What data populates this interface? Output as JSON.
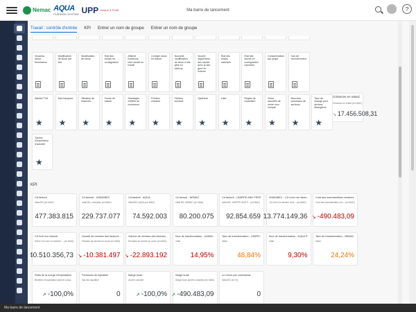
{
  "header": {
    "title": "Ma barre de lancement",
    "logo_nemac": "Nemac",
    "logo_aqua": "AQUA",
    "logo_aqua_sub": "PURIFIED SYSTEM",
    "logo_upp": "UPP",
    "logo_upp_sub": "Unique & Profit",
    "help_label": "?"
  },
  "tabs": [
    {
      "label": "Travail : contrôle d'entrée"
    },
    {
      "label": "KPI"
    },
    {
      "label": "Entrer un nom de groupe"
    },
    {
      "label": "Entrer un nom de groupe"
    }
  ],
  "tiles_row1": [
    {
      "title": "Nouveau retour fournisseur"
    },
    {
      "title": "Modification de stock par lots"
    },
    {
      "title": "Modification de stock"
    },
    {
      "title": "État des stocks en consignation"
    },
    {
      "title": "Afficher livraisons, mini stocké en transit"
    },
    {
      "title": "Corriger stock en transit"
    },
    {
      "title": "Nouvelle modification de stock à site géré en externe"
    },
    {
      "title": "Nouvel alignement des stocks avec le site géré en externe"
    },
    {
      "title": "État des stocks valorisés"
    },
    {
      "title": "État des stocks en consignation valorisée"
    },
    {
      "title": "Consommation par projet"
    },
    {
      "title": "Cas de recouvrement"
    }
  ],
  "tiles_row2": [
    {
      "title": "Saisies TVA"
    },
    {
      "title": "Mes banques"
    },
    {
      "title": "Situation de relances"
    },
    {
      "title": "Fonds de caisse"
    },
    {
      "title": "Stockages d'effets de commerce"
    },
    {
      "title": "Fichiers entrants"
    },
    {
      "title": "Fichiers sortants"
    },
    {
      "title": "Synthèse"
    },
    {
      "title": "Liste"
    },
    {
      "title": "Règles de répartition"
    },
    {
      "title": "Gérer données de vente mon compte"
    },
    {
      "title": "Nouveau processus de services"
    },
    {
      "title": "Taux de change pour devises étrangères"
    }
  ],
  "tile_creances": {
    "title": "Créances en retard",
    "subtitle": "Créances en retard (en MAD)",
    "value": "17.456.508,31"
  },
  "tile_row3": {
    "title": "Tâches d'impression d'actuelle"
  },
  "kpi_section_title": "KPI",
  "kpi_row1": [
    {
      "title": "CA facturé",
      "sub": "Initial BG (en MAD)",
      "value": "477.383.815",
      "style": ""
    },
    {
      "title": "CA facturé - UNIMABEC",
      "sub": "Initial BG, unimabec (en MAD)",
      "value": "229.737.077",
      "style": ""
    },
    {
      "title": "CA facturé - AQUA",
      "sub": "Initial BG, AQUA (en MAD)",
      "value": "74.592.003",
      "style": ""
    },
    {
      "title": "CA facturé - NEMAC",
      "sub": "Initial BG, NEMAC (en MAD)",
      "value": "80.200.075",
      "style": ""
    },
    {
      "title": "CA facturé - UNIPIPE AND PROFIL",
      "sub": "Initial BG, UNIPIPE AND P... (en MAD)",
      "value": "92.854.659",
      "style": ""
    },
    {
      "title": "UNIMABEC - CA Livré non factu...",
      "sub": "CA Livré non facturé, Actu... (en MAD)",
      "value": "13.774.149,36",
      "style": ""
    },
    {
      "title": "Coût des marchandises vendues",
      "sub": "Coût des marchandises ven... (en MAD)",
      "value": "-490.483,09",
      "style": "neg-arrow"
    }
  ],
  "kpi_row2": [
    {
      "title": "CA livré non facturé",
      "sub": "SUIVI CA Livré non facturé ... (en MAD)",
      "value": "40.510.356,73",
      "style": ""
    },
    {
      "title": "Volume de remises des factures ...",
      "sub": "Remises de l'année en cours (en MAD)",
      "value": "-10.381.497",
      "style": "neg-arrow"
    },
    {
      "title": "Volume de remises des factures ...",
      "sub": "Remises de l'année en cours (en MAD)",
      "value": "-22.893.192",
      "style": "neg-arrow"
    },
    {
      "title": "Taux de transformation - UNIMA...",
      "sub": "Initial",
      "value": "14,95%",
      "style": "red"
    },
    {
      "title": "Taux de transformation - UNIPIP...",
      "sub": "Initial",
      "value": "48,84%",
      "style": "warn"
    },
    {
      "title": "Taux de transformation - AQUA P...",
      "sub": "Initial",
      "value": "9,30%",
      "style": "red"
    },
    {
      "title": "Taux de transformation - NEMAC",
      "sub": "Initial",
      "value": "24,24%",
      "style": "warn"
    }
  ],
  "kpi_row3": [
    {
      "title": "Ratio de la marge d'exploitation",
      "sub": "Bénéfice d'exploitation (année cumul...",
      "value": "-100,0%",
      "style": "green-arrow"
    },
    {
      "title": "Prévisions de liquidités",
      "sub": "État des liquidités",
      "value": "0",
      "style": ""
    },
    {
      "title": "Marge brute",
      "sub": "Année cumulée",
      "value": "-100,0%",
      "style": "green-arrow"
    },
    {
      "title": "Marge brute",
      "sub": "Marge brute (année cumulée) (en MAD)",
      "value": "-490.483,09",
      "style": "green-arrow"
    },
    {
      "title": "Le retour par commande",
      "sub": "Initial BG (en %)",
      "value": "0",
      "style": ""
    }
  ],
  "statusbar": {
    "label": "Ma barre de lancement"
  }
}
